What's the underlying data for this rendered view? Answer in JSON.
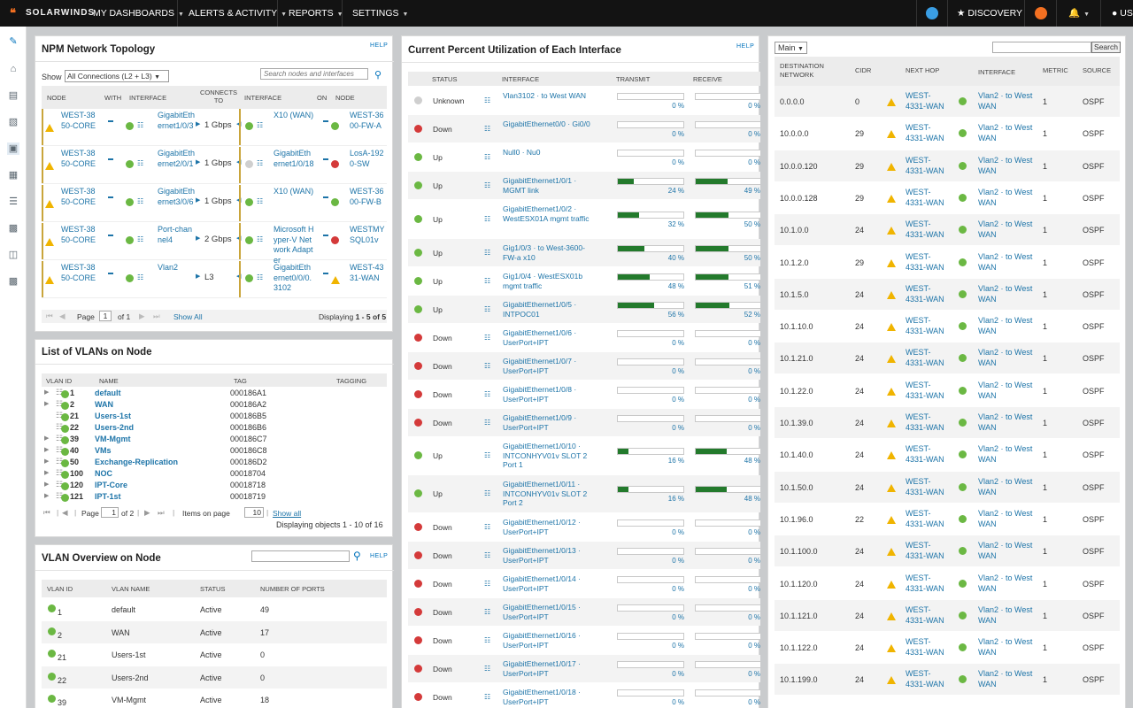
{
  "nav": {
    "brand": "SOLARWINDS",
    "menu": [
      {
        "label": "MY DASHBOARDS"
      },
      {
        "label": "ALERTS & ACTIVITY"
      },
      {
        "label": "REPORTS"
      },
      {
        "label": "SETTINGS"
      }
    ],
    "discovery": "DISCOVERY",
    "user": "US"
  },
  "topology": {
    "title": "NPM Network Topology",
    "help": "HELP",
    "show_label": "Show",
    "show_value": "All Connections (L2 + L3)",
    "search_placeholder": "Search nodes and interfaces",
    "headers": [
      "NODE",
      "WITH",
      "INTERFACE",
      "CONNECTS TO",
      "INTERFACE",
      "ON",
      "NODE"
    ],
    "rows": [
      {
        "node": "WEST-3850-CORE",
        "iface": "GigabitEthernet1/0/3",
        "speed": "1 Gbps",
        "iface2": "X10 (WAN)",
        "node2": "WEST-3600-FW-A",
        "status2": "g"
      },
      {
        "node": "WEST-3850-CORE",
        "iface": "GigabitEthernet2/0/1",
        "speed": "1 Gbps",
        "iface2": "GigabitEthernet1/0/18",
        "node2": "LosA-1920-SW",
        "status2": "r"
      },
      {
        "node": "WEST-3850-CORE",
        "iface": "GigabitEthernet3/0/6",
        "speed": "1 Gbps",
        "iface2": "X10 (WAN)",
        "node2": "WEST-3600-FW-B",
        "status2": "g"
      },
      {
        "node": "WEST-3850-CORE",
        "iface": "Port-channel4",
        "speed": "2 Gbps",
        "iface2": "Microsoft Hyper-V Network Adapter",
        "node2": "WESTMYSQL01v",
        "status2": "r"
      },
      {
        "node": "WEST-3850-CORE",
        "iface": "Vlan2",
        "speed": "L3",
        "iface2": "GigabitEthernet0/0/0.3102",
        "node2": "WEST-4331-WAN",
        "status2": "w"
      }
    ],
    "page_label": "Page",
    "page": "1",
    "of": "of 1",
    "show_all": "Show All",
    "displaying_prefix": "Displaying ",
    "displaying_range": "1 - 5 of 5"
  },
  "vlans": {
    "title": "List of VLANs on Node",
    "headers": [
      "VLAN ID",
      "NAME",
      "TAG",
      "TAGGING"
    ],
    "rows": [
      {
        "id": "1",
        "name": "default",
        "tag": "000186A1",
        "expand": true
      },
      {
        "id": "2",
        "name": "WAN",
        "tag": "000186A2",
        "expand": true
      },
      {
        "id": "21",
        "name": "Users-1st",
        "tag": "000186B5",
        "expand": false
      },
      {
        "id": "22",
        "name": "Users-2nd",
        "tag": "000186B6",
        "expand": false
      },
      {
        "id": "39",
        "name": "VM-Mgmt",
        "tag": "000186C7",
        "expand": true
      },
      {
        "id": "40",
        "name": "VMs",
        "tag": "000186C8",
        "expand": true
      },
      {
        "id": "50",
        "name": "Exchange-Replication",
        "tag": "000186D2",
        "expand": true
      },
      {
        "id": "100",
        "name": "NOC",
        "tag": "00018704",
        "expand": true
      },
      {
        "id": "120",
        "name": "IPT-Core",
        "tag": "00018718",
        "expand": true
      },
      {
        "id": "121",
        "name": "IPT-1st",
        "tag": "00018719",
        "expand": true
      }
    ],
    "page_label": "Page",
    "page": "1",
    "of": "of 2",
    "items_label": "Items on page",
    "items": "10",
    "show_all": "Show all",
    "displaying": "Displaying objects 1 - 10 of 16"
  },
  "vlan_overview": {
    "title": "VLAN Overview on Node",
    "help": "HELP",
    "headers": [
      "VLAN ID",
      "VLAN NAME",
      "STATUS",
      "NUMBER OF PORTS"
    ],
    "rows": [
      {
        "id": "1",
        "name": "default",
        "status": "Active",
        "ports": "49"
      },
      {
        "id": "2",
        "name": "WAN",
        "status": "Active",
        "ports": "17"
      },
      {
        "id": "21",
        "name": "Users-1st",
        "status": "Active",
        "ports": "0"
      },
      {
        "id": "22",
        "name": "Users-2nd",
        "status": "Active",
        "ports": "0"
      },
      {
        "id": "39",
        "name": "VM-Mgmt",
        "status": "Active",
        "ports": "18"
      }
    ]
  },
  "utilization": {
    "title": "Current Percent Utilization of Each Interface",
    "help": "HELP",
    "headers": [
      "STATUS",
      "INTERFACE",
      "TRANSMIT",
      "RECEIVE"
    ],
    "rows": [
      {
        "status": "Unknown",
        "color": "gr",
        "name": "Vlan3102 · to West WAN",
        "tx": 0,
        "tx_label": "0 %",
        "rx": 0,
        "rx_label": "0 %"
      },
      {
        "status": "Down",
        "color": "r",
        "name": "GigabitEthernet0/0 · Gi0/0",
        "tx": 0,
        "tx_label": "0 %",
        "rx": 0,
        "rx_label": "0 %"
      },
      {
        "status": "Up",
        "color": "g",
        "name": "Null0 · Nu0",
        "tx": 0,
        "tx_label": "0 %",
        "rx": 0,
        "rx_label": "0 %"
      },
      {
        "status": "Up",
        "color": "g",
        "name": "GigabitEthernet1/0/1 · MGMT link",
        "tx": 24,
        "tx_label": "24 %",
        "rx": 49,
        "rx_label": "49 %"
      },
      {
        "status": "Up",
        "color": "g",
        "name": "GigabitEthernet1/0/2 · WestESX01A mgmt traffic",
        "tx": 32,
        "tx_label": "32 %",
        "rx": 50,
        "rx_label": "50 %"
      },
      {
        "status": "Up",
        "color": "g",
        "name": "Gig1/0/3 · to West-3600-FW-a x10",
        "tx": 40,
        "tx_label": "40 %",
        "rx": 50,
        "rx_label": "50 %"
      },
      {
        "status": "Up",
        "color": "g",
        "name": "Gig1/0/4 · WestESX01b mgmt traffic",
        "tx": 48,
        "tx_label": "48 %",
        "rx": 51,
        "rx_label": "51 %"
      },
      {
        "status": "Up",
        "color": "g",
        "name": "GigabitEthernet1/0/5 · INTPOC01",
        "tx": 56,
        "tx_label": "56 %",
        "rx": 52,
        "rx_label": "52 %"
      },
      {
        "status": "Down",
        "color": "r",
        "name": "GigabitEthernet1/0/6 · UserPort+IPT",
        "tx": 0,
        "tx_label": "0 %",
        "rx": 0,
        "rx_label": "0 %"
      },
      {
        "status": "Down",
        "color": "r",
        "name": "GigabitEthernet1/0/7 · UserPort+IPT",
        "tx": 0,
        "tx_label": "0 %",
        "rx": 0,
        "rx_label": "0 %"
      },
      {
        "status": "Down",
        "color": "r",
        "name": "GigabitEthernet1/0/8 · UserPort+IPT",
        "tx": 0,
        "tx_label": "0 %",
        "rx": 0,
        "rx_label": "0 %"
      },
      {
        "status": "Down",
        "color": "r",
        "name": "GigabitEthernet1/0/9 · UserPort+IPT",
        "tx": 0,
        "tx_label": "0 %",
        "rx": 0,
        "rx_label": "0 %"
      },
      {
        "status": "Up",
        "color": "g",
        "name": "GigabitEthernet1/0/10 · INTCONHYV01v SLOT 2 Port 1",
        "tx": 16,
        "tx_label": "16 %",
        "rx": 48,
        "rx_label": "48 %"
      },
      {
        "status": "Up",
        "color": "g",
        "name": "GigabitEthernet1/0/11 · INTCONHYV01v SLOT 2 Port 2",
        "tx": 16,
        "tx_label": "16 %",
        "rx": 48,
        "rx_label": "48 %"
      },
      {
        "status": "Down",
        "color": "r",
        "name": "GigabitEthernet1/0/12 · UserPort+IPT",
        "tx": 0,
        "tx_label": "0 %",
        "rx": 0,
        "rx_label": "0 %"
      },
      {
        "status": "Down",
        "color": "r",
        "name": "GigabitEthernet1/0/13 · UserPort+IPT",
        "tx": 0,
        "tx_label": "0 %",
        "rx": 0,
        "rx_label": "0 %"
      },
      {
        "status": "Down",
        "color": "r",
        "name": "GigabitEthernet1/0/14 · UserPort+IPT",
        "tx": 0,
        "tx_label": "0 %",
        "rx": 0,
        "rx_label": "0 %"
      },
      {
        "status": "Down",
        "color": "r",
        "name": "GigabitEthernet1/0/15 · UserPort+IPT",
        "tx": 0,
        "tx_label": "0 %",
        "rx": 0,
        "rx_label": "0 %"
      },
      {
        "status": "Down",
        "color": "r",
        "name": "GigabitEthernet1/0/16 · UserPort+IPT",
        "tx": 0,
        "tx_label": "0 %",
        "rx": 0,
        "rx_label": "0 %"
      },
      {
        "status": "Down",
        "color": "r",
        "name": "GigabitEthernet1/0/17 · UserPort+IPT",
        "tx": 0,
        "tx_label": "0 %",
        "rx": 0,
        "rx_label": "0 %"
      },
      {
        "status": "Down",
        "color": "r",
        "name": "GigabitEthernet1/0/18 · UserPort+IPT",
        "tx": 0,
        "tx_label": "0 %",
        "rx": 0,
        "rx_label": "0 %"
      }
    ]
  },
  "routing": {
    "select": "Main",
    "search_button": "Search",
    "headers": [
      "DESTINATION NETWORK",
      "CIDR",
      "NEXT HOP",
      "INTERFACE",
      "METRIC",
      "SOURCE"
    ],
    "rows": [
      {
        "dest": "0.0.0.0",
        "cidr": "0",
        "hop": "WEST-4331-WAN",
        "iface": "Vlan2 · to West WAN",
        "metric": "1",
        "source": "OSPF"
      },
      {
        "dest": "10.0.0.0",
        "cidr": "29",
        "hop": "WEST-4331-WAN",
        "iface": "Vlan2 · to West WAN",
        "metric": "1",
        "source": "OSPF"
      },
      {
        "dest": "10.0.0.120",
        "cidr": "29",
        "hop": "WEST-4331-WAN",
        "iface": "Vlan2 · to West WAN",
        "metric": "1",
        "source": "OSPF"
      },
      {
        "dest": "10.0.0.128",
        "cidr": "29",
        "hop": "WEST-4331-WAN",
        "iface": "Vlan2 · to West WAN",
        "metric": "1",
        "source": "OSPF"
      },
      {
        "dest": "10.1.0.0",
        "cidr": "24",
        "hop": "WEST-4331-WAN",
        "iface": "Vlan2 · to West WAN",
        "metric": "1",
        "source": "OSPF"
      },
      {
        "dest": "10.1.2.0",
        "cidr": "29",
        "hop": "WEST-4331-WAN",
        "iface": "Vlan2 · to West WAN",
        "metric": "1",
        "source": "OSPF"
      },
      {
        "dest": "10.1.5.0",
        "cidr": "24",
        "hop": "WEST-4331-WAN",
        "iface": "Vlan2 · to West WAN",
        "metric": "1",
        "source": "OSPF"
      },
      {
        "dest": "10.1.10.0",
        "cidr": "24",
        "hop": "WEST-4331-WAN",
        "iface": "Vlan2 · to West WAN",
        "metric": "1",
        "source": "OSPF"
      },
      {
        "dest": "10.1.21.0",
        "cidr": "24",
        "hop": "WEST-4331-WAN",
        "iface": "Vlan2 · to West WAN",
        "metric": "1",
        "source": "OSPF"
      },
      {
        "dest": "10.1.22.0",
        "cidr": "24",
        "hop": "WEST-4331-WAN",
        "iface": "Vlan2 · to West WAN",
        "metric": "1",
        "source": "OSPF"
      },
      {
        "dest": "10.1.39.0",
        "cidr": "24",
        "hop": "WEST-4331-WAN",
        "iface": "Vlan2 · to West WAN",
        "metric": "1",
        "source": "OSPF"
      },
      {
        "dest": "10.1.40.0",
        "cidr": "24",
        "hop": "WEST-4331-WAN",
        "iface": "Vlan2 · to West WAN",
        "metric": "1",
        "source": "OSPF"
      },
      {
        "dest": "10.1.50.0",
        "cidr": "24",
        "hop": "WEST-4331-WAN",
        "iface": "Vlan2 · to West WAN",
        "metric": "1",
        "source": "OSPF"
      },
      {
        "dest": "10.1.96.0",
        "cidr": "22",
        "hop": "WEST-4331-WAN",
        "iface": "Vlan2 · to West WAN",
        "metric": "1",
        "source": "OSPF"
      },
      {
        "dest": "10.1.100.0",
        "cidr": "24",
        "hop": "WEST-4331-WAN",
        "iface": "Vlan2 · to West WAN",
        "metric": "1",
        "source": "OSPF"
      },
      {
        "dest": "10.1.120.0",
        "cidr": "24",
        "hop": "WEST-4331-WAN",
        "iface": "Vlan2 · to West WAN",
        "metric": "1",
        "source": "OSPF"
      },
      {
        "dest": "10.1.121.0",
        "cidr": "24",
        "hop": "WEST-4331-WAN",
        "iface": "Vlan2 · to West WAN",
        "metric": "1",
        "source": "OSPF"
      },
      {
        "dest": "10.1.122.0",
        "cidr": "24",
        "hop": "WEST-4331-WAN",
        "iface": "Vlan2 · to West WAN",
        "metric": "1",
        "source": "OSPF"
      },
      {
        "dest": "10.1.199.0",
        "cidr": "24",
        "hop": "WEST-4331-WAN",
        "iface": "Vlan2 · to West WAN",
        "metric": "1",
        "source": "OSPF"
      }
    ]
  },
  "colors": {
    "brand": "#f37021",
    "up": "#6bb843",
    "down": "#d43a3a",
    "bar": "#237a2c",
    "link": "#1d74a8"
  }
}
